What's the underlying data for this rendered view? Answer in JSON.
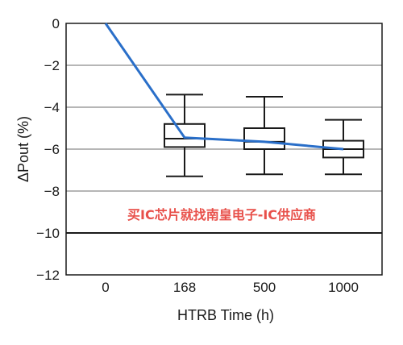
{
  "chart_data": {
    "type": "box",
    "title": "",
    "xlabel": "HTRB Time (h)",
    "ylabel": "ΔPout (%)",
    "ylim": [
      -12,
      0
    ],
    "yticks": [
      0,
      -2,
      -4,
      -6,
      -8,
      -10,
      -12
    ],
    "ytick_labels": [
      "0",
      "−2",
      "−4",
      "−6",
      "−8",
      "−10",
      "−12"
    ],
    "categories": [
      "0",
      "168",
      "500",
      "1000"
    ],
    "grid": true,
    "reference_line": -10,
    "boxes": [
      {
        "category": "168",
        "whisker_low": -7.3,
        "q1": -5.9,
        "median": -5.5,
        "q3": -4.8,
        "whisker_high": -3.4
      },
      {
        "category": "500",
        "whisker_low": -7.2,
        "q1": -6.0,
        "median": -5.65,
        "q3": -5.0,
        "whisker_high": -3.5
      },
      {
        "category": "1000",
        "whisker_low": -7.2,
        "q1": -6.4,
        "median": -6.0,
        "q3": -5.6,
        "whisker_high": -4.6
      }
    ],
    "trend_line": {
      "categories": [
        "0",
        "168",
        "500",
        "1000"
      ],
      "values": [
        0,
        -5.45,
        -5.65,
        -6.0
      ],
      "color": "#2a6fc9"
    }
  },
  "watermark": "买IC芯片就找南皇电子-IC供应商"
}
